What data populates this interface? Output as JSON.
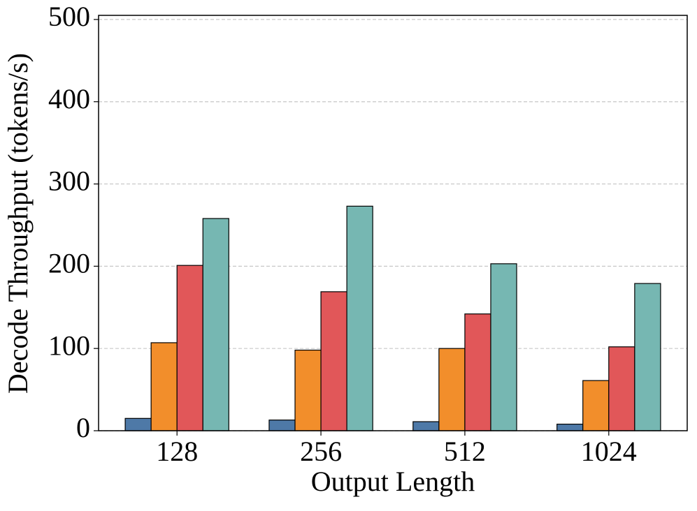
{
  "chart_data": {
    "type": "bar",
    "x_label": "Output Length",
    "y_label": "Decode Throughput (tokens/s)",
    "categories": [
      "128",
      "256",
      "512",
      "1024"
    ],
    "series": [
      {
        "color": "#4e79a7",
        "values": [
          15,
          13,
          11,
          8
        ]
      },
      {
        "color": "#f28e2b",
        "values": [
          107,
          98,
          100,
          61
        ]
      },
      {
        "color": "#e15759",
        "values": [
          201,
          169,
          142,
          102
        ]
      },
      {
        "color": "#76b7b2",
        "values": [
          258,
          273,
          203,
          179
        ]
      }
    ],
    "ylim": [
      0,
      505
    ],
    "yticks": [
      0,
      100,
      200,
      300,
      400,
      500
    ],
    "grid": true
  }
}
